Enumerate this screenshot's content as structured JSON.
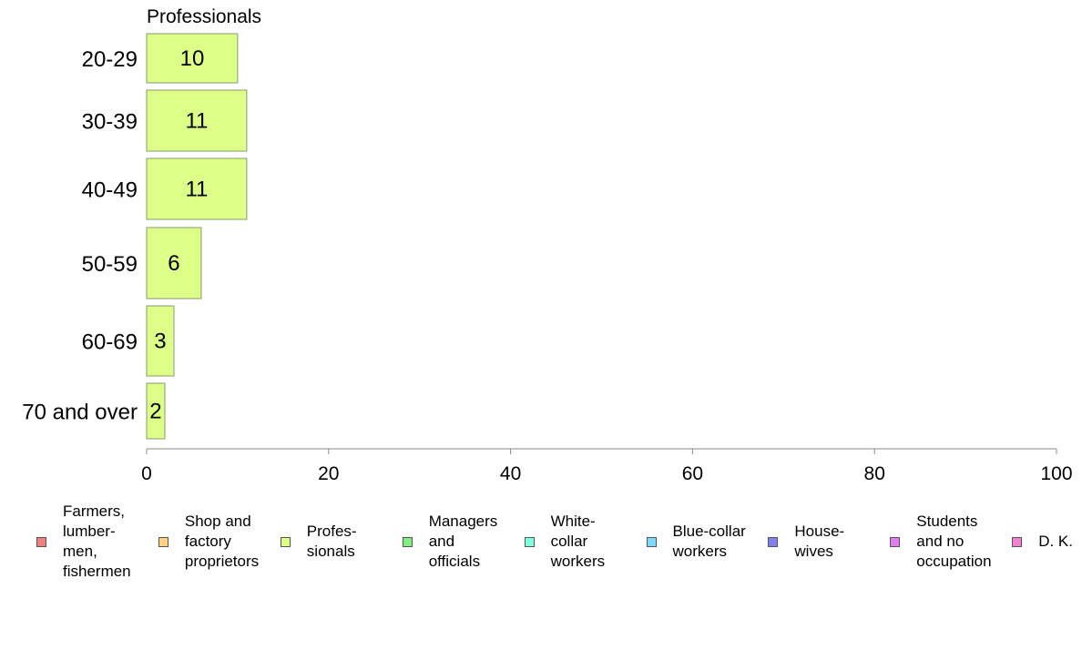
{
  "chart_data": {
    "type": "bar",
    "orientation": "horizontal",
    "title": "Professionals",
    "categories": [
      "20-29",
      "30-39",
      "40-49",
      "50-59",
      "60-69",
      "70 and over"
    ],
    "series": [
      {
        "name": "Profes-\nsionals",
        "values": [
          10,
          11,
          11,
          6,
          3,
          2
        ],
        "color": "#ddff88"
      }
    ],
    "xlim": [
      0,
      100
    ],
    "xticks": [
      0,
      20,
      40,
      60,
      80,
      100
    ],
    "grid": false,
    "legend_position": "bottom",
    "legend": [
      {
        "label": "Farmers,\nlumber-\nmen,\nfishermen",
        "color": "#f08080"
      },
      {
        "label": "Shop and\nfactory\nproprietors",
        "color": "#ffd080"
      },
      {
        "label": "Profes-\nsionals",
        "color": "#ddff88"
      },
      {
        "label": "Managers\nand\nofficials",
        "color": "#80f080"
      },
      {
        "label": "White-\ncollar\nworkers",
        "color": "#80ffe0"
      },
      {
        "label": "Blue-collar\nworkers",
        "color": "#80d8ff"
      },
      {
        "label": "House-\nwives",
        "color": "#8080f0"
      },
      {
        "label": "Students\nand no\noccupation",
        "color": "#e080f0"
      },
      {
        "label": "D. K.",
        "color": "#f080d0"
      }
    ]
  }
}
